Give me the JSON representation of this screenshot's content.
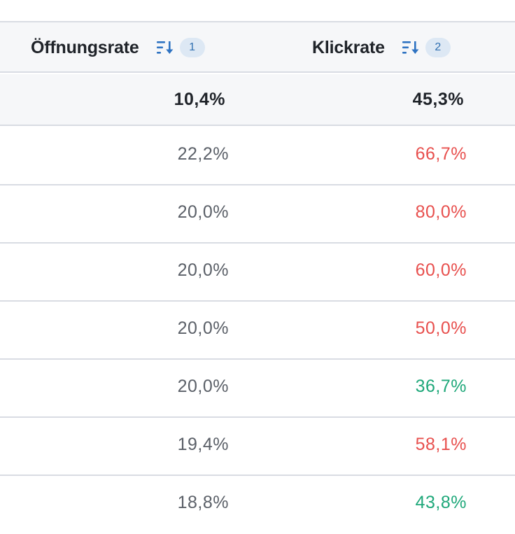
{
  "columns": [
    {
      "title": "Öffnungsrate",
      "sort_order": "1",
      "sort_icon": "sort-descending-icon"
    },
    {
      "title": "Klickrate",
      "sort_order": "2",
      "sort_icon": "sort-descending-icon"
    }
  ],
  "summary": {
    "open_rate": "10,4%",
    "click_rate": "45,3%"
  },
  "colors": {
    "red": "#e8504e",
    "green": "#1fa87a",
    "accent": "#2f6fb0"
  },
  "rows": [
    {
      "open_rate": "22,2%",
      "click_rate": "66,7%",
      "click_status": "red"
    },
    {
      "open_rate": "20,0%",
      "click_rate": "80,0%",
      "click_status": "red"
    },
    {
      "open_rate": "20,0%",
      "click_rate": "60,0%",
      "click_status": "red"
    },
    {
      "open_rate": "20,0%",
      "click_rate": "50,0%",
      "click_status": "red"
    },
    {
      "open_rate": "20,0%",
      "click_rate": "36,7%",
      "click_status": "green"
    },
    {
      "open_rate": "19,4%",
      "click_rate": "58,1%",
      "click_status": "red"
    },
    {
      "open_rate": "18,8%",
      "click_rate": "43,8%",
      "click_status": "green"
    }
  ]
}
